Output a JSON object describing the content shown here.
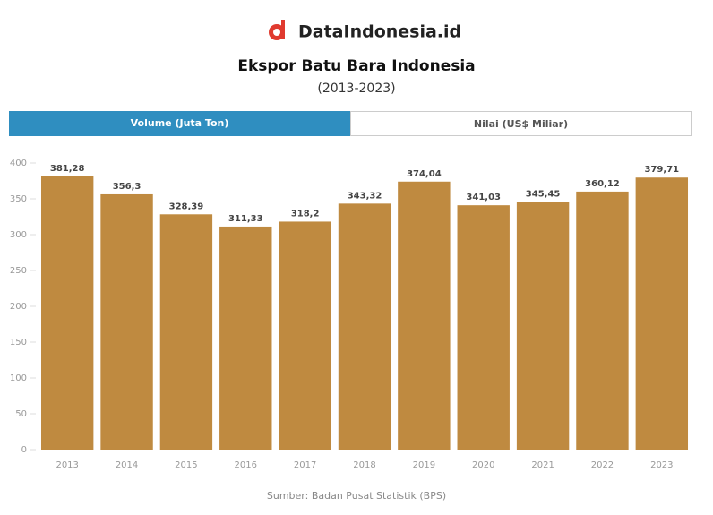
{
  "header": {
    "brand": "DataIndonesia.id"
  },
  "tabs": [
    "Volume (Juta Ton)",
    "Nilai (US$ Miliar)"
  ],
  "chart_data": {
    "type": "bar",
    "title": "Ekspor Batu Bara Indonesia",
    "subtitle": "(2013-2023)",
    "categories": [
      "2013",
      "2014",
      "2015",
      "2016",
      "2017",
      "2018",
      "2019",
      "2020",
      "2021",
      "2022",
      "2023"
    ],
    "values": [
      381.28,
      356.3,
      328.39,
      311.33,
      318.2,
      343.32,
      374.04,
      341.03,
      345.45,
      360.12,
      379.71
    ],
    "value_labels": [
      "381,28",
      "356,3",
      "328,39",
      "311,33",
      "318,2",
      "343,32",
      "374,04",
      "341,03",
      "345,45",
      "360,12",
      "379,71"
    ],
    "color": "#bf8a40",
    "ylim": [
      0,
      400
    ],
    "yticks": [
      0,
      50,
      100,
      150,
      200,
      250,
      300,
      350,
      400
    ]
  },
  "source": "Sumber: Badan Pusat Statistik (BPS)"
}
